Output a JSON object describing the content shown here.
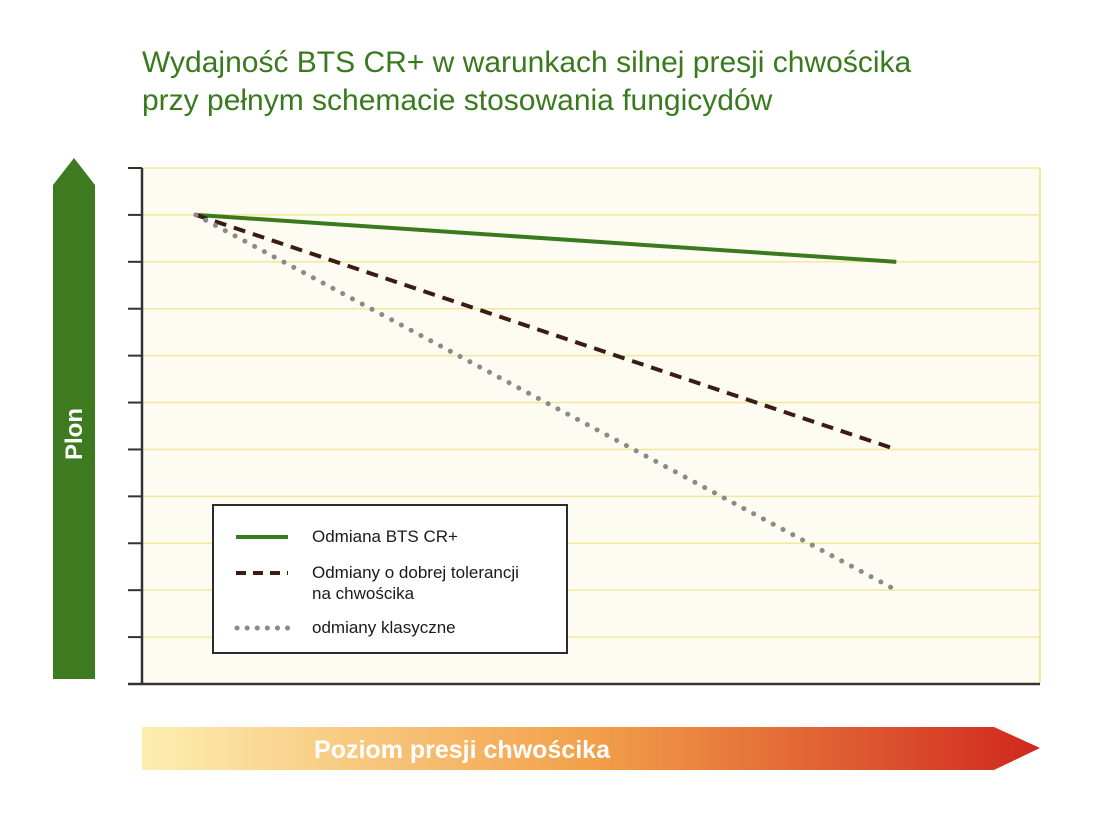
{
  "chart_data": {
    "type": "line",
    "title_lines": [
      "Wydajność BTS CR+ w warunkach silnej presji chwościka",
      "przy pełnym schemacie stosowania fungicydów"
    ],
    "xlabel": "Poziom presji chwościka",
    "ylabel": "Plon",
    "ylim": [
      0,
      11
    ],
    "xlim": [
      0,
      1
    ],
    "grid": true,
    "legend_position": "bottom-left",
    "series": [
      {
        "name": "Odmiana BTS CR+",
        "style": "solid",
        "color": "#3a7a1e",
        "x": [
          0.06,
          0.84
        ],
        "y": [
          10,
          9
        ]
      },
      {
        "name": "Odmiany o dobrej tolerancji\nna chwościka",
        "style": "dashed",
        "color": "#3b1c12",
        "x": [
          0.06,
          0.84
        ],
        "y": [
          10,
          5
        ]
      },
      {
        "name": "odmiany klasyczne",
        "style": "dotted",
        "color": "#8a8a8a",
        "x": [
          0.06,
          0.84
        ],
        "y": [
          10,
          2
        ]
      }
    ]
  },
  "colors": {
    "plot_background": "#fefcf2",
    "grid": "#f3e89a",
    "axis": "#333333",
    "y_arrow": "#3e7a1f",
    "x_arrow_start": "#fdeeb0",
    "x_arrow_end": "#d0281e"
  }
}
